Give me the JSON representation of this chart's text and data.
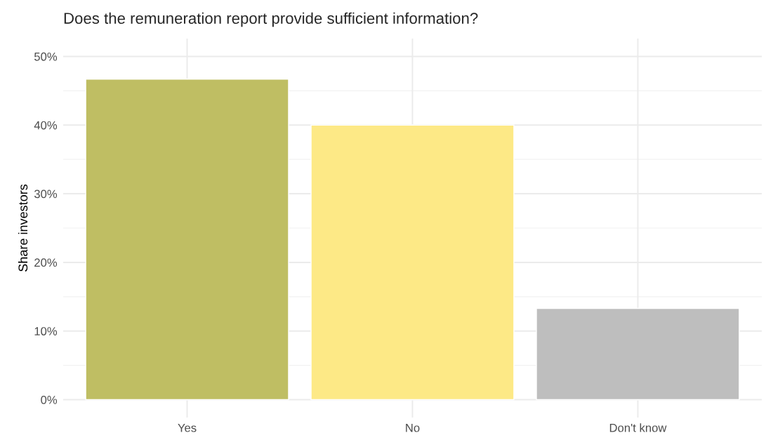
{
  "chart_data": {
    "type": "bar",
    "title": "Does the remuneration report provide sufficient information?",
    "ylabel": "Share investors",
    "categories": [
      "Yes",
      "No",
      "Don't know"
    ],
    "values": [
      46.7,
      40,
      13.3
    ],
    "colors": [
      "#bfbe63",
      "#fde986",
      "#bebebe"
    ],
    "ylim": [
      -2.6,
      52.6
    ],
    "yticks": [
      {
        "value": 0,
        "label": "0%"
      },
      {
        "value": 10,
        "label": "10%"
      },
      {
        "value": 20,
        "label": "20%"
      },
      {
        "value": 30,
        "label": "30%"
      },
      {
        "value": 40,
        "label": "40%"
      },
      {
        "value": 50,
        "label": "50%"
      }
    ],
    "grid": true
  }
}
